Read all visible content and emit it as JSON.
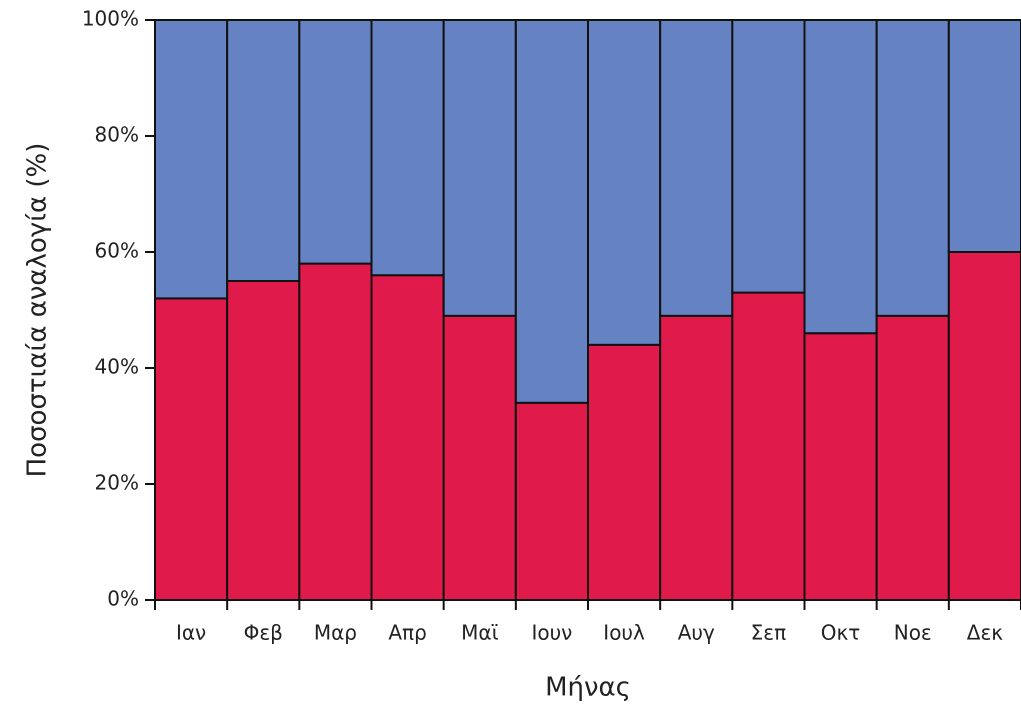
{
  "chart_data": {
    "type": "stacked_bar",
    "x_label": "Μήνας",
    "y_label": "Ποσοστιαία αναλογία (%)",
    "categories": [
      "Ιαν",
      "Φεβ",
      "Μαρ",
      "Απρ",
      "Μαϊ",
      "Ιουν",
      "Ιουλ",
      "Αυγ",
      "Σεπ",
      "Οκτ",
      "Νοε",
      "Δεκ"
    ],
    "series": [
      {
        "color": "#e01a4a",
        "values": [
          52,
          55,
          58,
          56,
          49,
          34,
          44,
          49,
          53,
          46,
          49,
          60
        ]
      },
      {
        "color": "#6583c3",
        "values": [
          48,
          45,
          42,
          44,
          51,
          66,
          56,
          51,
          47,
          54,
          51,
          40
        ]
      }
    ],
    "ylim": [
      0,
      100
    ],
    "yticks": [
      {
        "value": 0,
        "label": "0%"
      },
      {
        "value": 20,
        "label": "20%"
      },
      {
        "value": 40,
        "label": "40%"
      },
      {
        "value": 60,
        "label": "60%"
      },
      {
        "value": 80,
        "label": "80%"
      },
      {
        "value": 100,
        "label": "100%"
      }
    ]
  }
}
